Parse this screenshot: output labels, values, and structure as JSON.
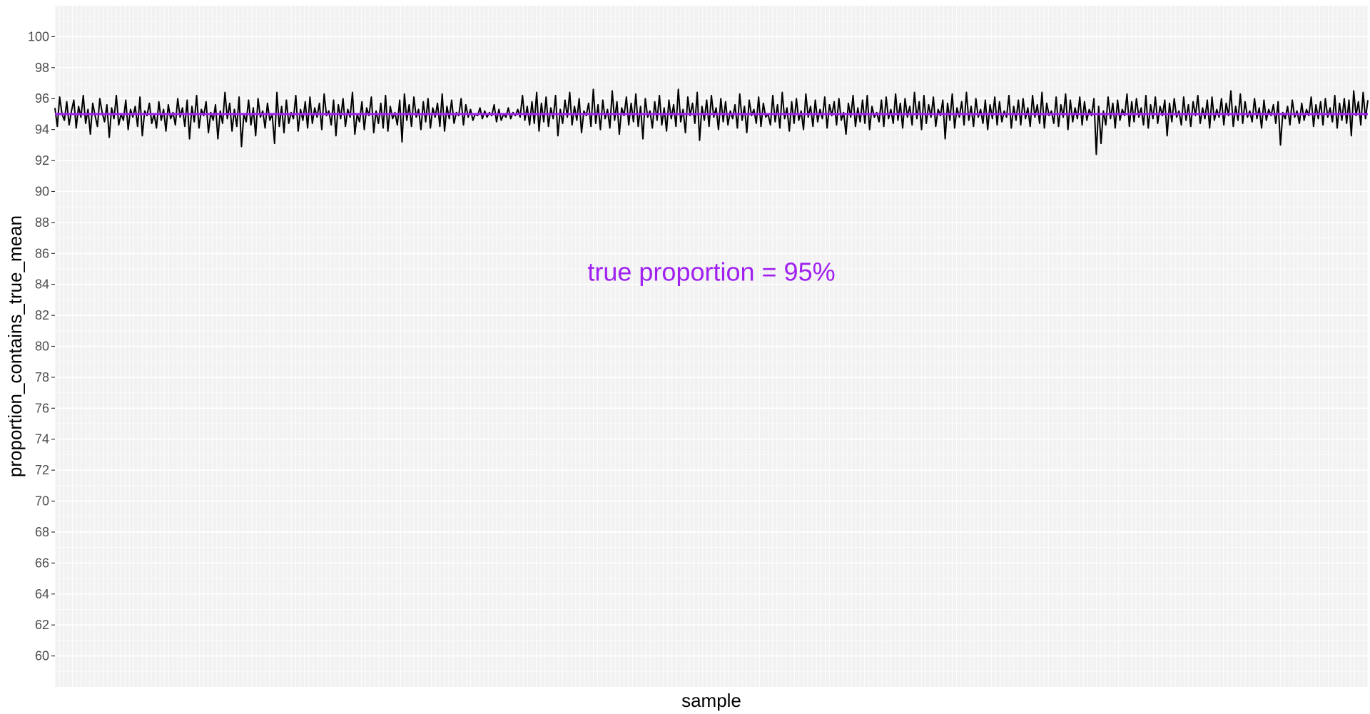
{
  "chart_data": {
    "type": "line",
    "title": "",
    "xlabel": "sample",
    "ylabel": "proportion_contains_true_mean",
    "ylim": [
      58,
      102
    ],
    "y_ticks": [
      60,
      62,
      64,
      66,
      68,
      70,
      72,
      74,
      76,
      78,
      80,
      82,
      84,
      86,
      88,
      90,
      92,
      94,
      96,
      98,
      100
    ],
    "y_tick_labels": [
      "60",
      "62",
      "64",
      "66",
      "68",
      "70",
      "72",
      "74",
      "76",
      "78",
      "80",
      "82",
      "84",
      "86",
      "88",
      "90",
      "92",
      "94",
      "96",
      "98",
      "100"
    ],
    "x_ticks_shown": false,
    "grid": true,
    "background_color": "#f2f2f2",
    "line_color": "#000000",
    "reference_line": {
      "y": 95,
      "color": "#a020f0"
    },
    "annotation": {
      "text": "true proportion = 95%",
      "x_fraction": 0.5,
      "y": 84.8,
      "color": "#a020f0"
    },
    "series": [
      {
        "values": [
          95.4,
          94.2,
          96.1,
          95.0,
          94.6,
          95.8,
          94.3,
          95.2,
          95.9,
          94.1,
          95.5,
          94.8,
          96.2,
          94.4,
          95.3,
          93.7,
          95.7,
          94.9,
          94.2,
          96.0,
          95.1,
          94.5,
          95.6,
          93.5,
          95.4,
          94.7,
          96.2,
          94.3,
          95.0,
          94.6,
          95.9,
          94.0,
          95.3,
          94.8,
          95.5,
          94.2,
          96.1,
          93.6,
          95.2,
          94.9,
          95.7,
          94.4,
          95.0,
          94.1,
          95.8,
          94.6,
          95.3,
          93.9,
          95.6,
          94.7,
          95.1,
          94.3,
          96.0,
          94.8,
          95.4,
          94.2,
          95.9,
          93.4,
          95.5,
          94.5,
          96.2,
          94.1,
          95.3,
          94.9,
          95.8,
          93.8,
          95.1,
          94.6,
          95.6,
          93.4,
          95.2,
          94.4,
          96.4,
          94.7,
          95.7,
          93.9,
          95.3,
          94.2,
          96.1,
          92.9,
          95.0,
          94.5,
          95.9,
          94.3,
          95.4,
          93.6,
          96.0,
          94.8,
          95.2,
          94.1,
          95.7,
          94.6,
          95.0,
          93.1,
          96.4,
          94.2,
          95.5,
          93.8,
          95.9,
          94.4,
          95.1,
          94.7,
          96.2,
          93.9,
          95.3,
          94.6,
          95.8,
          94.1,
          96.1,
          94.4,
          95.4,
          94.8,
          95.7,
          94.0,
          96.3,
          94.9,
          95.2,
          94.3,
          95.9,
          93.6,
          95.6,
          94.7,
          96.0,
          94.2,
          95.3,
          94.8,
          96.4,
          93.7,
          95.0,
          94.5,
          95.8,
          94.0,
          95.4,
          94.9,
          96.1,
          93.8,
          95.2,
          94.4,
          95.7,
          94.1,
          96.2,
          93.9,
          95.5,
          94.7,
          95.1,
          94.3,
          95.9,
          93.2,
          96.3,
          94.6,
          95.6,
          94.2,
          96.1,
          94.8,
          95.3,
          94.0,
          95.8,
          94.5,
          96.0,
          94.1,
          95.4,
          94.8,
          95.7,
          94.2,
          96.3,
          93.9,
          95.5,
          94.7,
          95.9,
          94.4,
          95.1,
          94.9,
          96.0,
          94.3,
          95.6,
          94.8,
          95.3,
          94.6,
          95.0,
          94.9,
          95.4,
          94.7,
          95.2,
          94.8,
          95.1,
          94.9,
          95.6,
          94.5,
          95.3,
          94.6,
          95.0,
          94.8,
          95.4,
          94.7,
          95.1,
          94.9,
          95.3,
          94.8,
          96.2,
          94.6,
          95.5,
          94.3,
          95.8,
          94.4,
          96.4,
          93.9,
          95.7,
          94.5,
          96.1,
          94.2,
          95.4,
          94.7,
          96.2,
          93.6,
          95.3,
          94.4,
          95.9,
          94.8,
          96.4,
          94.3,
          95.5,
          94.6,
          96.0,
          93.8,
          95.2,
          94.9,
          95.7,
          94.2,
          96.6,
          94.4,
          95.6,
          94.0,
          95.9,
          94.7,
          95.3,
          94.1,
          96.5,
          94.6,
          95.8,
          93.7,
          95.4,
          94.9,
          96.1,
          94.3,
          95.7,
          94.5,
          96.3,
          94.2,
          95.5,
          93.4,
          96.0,
          94.8,
          95.2,
          94.1,
          95.8,
          94.6,
          96.2,
          94.3,
          95.4,
          93.9,
          95.9,
          94.7,
          95.6,
          94.2,
          96.6,
          94.5,
          95.3,
          93.8,
          96.1,
          94.9,
          95.7,
          94.4,
          96.4,
          93.3,
          95.5,
          94.6,
          95.9,
          94.2,
          96.2,
          94.8,
          95.4,
          94.0,
          96.0,
          94.5,
          95.8,
          94.3,
          95.2,
          94.7,
          95.6,
          94.1,
          96.3,
          94.6,
          95.5,
          93.8,
          95.9,
          94.9,
          95.3,
          94.4,
          96.1,
          94.2,
          95.7,
          94.8,
          95.0,
          94.3,
          96.2,
          94.5,
          95.6,
          94.1,
          96.4,
          94.7,
          95.4,
          93.9,
          95.8,
          94.4,
          96.0,
          94.6,
          95.2,
          94.0,
          96.3,
          94.8,
          95.5,
          94.2,
          95.9,
          94.5,
          95.3,
          94.7,
          96.1,
          94.1,
          95.6,
          94.9,
          95.8,
          94.3,
          96.0,
          94.6,
          95.1,
          93.7,
          95.7,
          94.8,
          96.2,
          94.2,
          95.4,
          94.5,
          95.9,
          94.4,
          96.2,
          94.0,
          95.5,
          94.8,
          95.1,
          94.5,
          95.9,
          94.2,
          96.1,
          94.7,
          95.3,
          94.4,
          96.3,
          94.6,
          95.7,
          94.1,
          96.0,
          94.8,
          95.5,
          94.3,
          96.4,
          94.7,
          95.8,
          94.0,
          96.2,
          94.4,
          95.6,
          94.8,
          96.1,
          94.2,
          95.3,
          94.9,
          95.9,
          93.4,
          95.7,
          94.6,
          96.3,
          94.1,
          95.4,
          94.8,
          95.8,
          94.3,
          96.4,
          94.6,
          95.5,
          94.2,
          96.0,
          94.8,
          95.3,
          94.4,
          95.9,
          94.0,
          95.6,
          94.7,
          96.1,
          94.3,
          95.8,
          94.5,
          95.2,
          94.8,
          96.2,
          94.1,
          95.5,
          94.6,
          95.9,
          94.3,
          96.0,
          94.7,
          95.4,
          94.2,
          96.2,
          94.8,
          95.6,
          94.4,
          96.4,
          94.1,
          95.7,
          94.9,
          95.2,
          94.4,
          96.1,
          94.2,
          95.6,
          94.8,
          96.3,
          94.0,
          95.9,
          94.5,
          95.4,
          94.7,
          96.1,
          94.3,
          95.8,
          94.6,
          95.3,
          94.9,
          96.0,
          92.4,
          95.5,
          93.1,
          95.2,
          94.3,
          96.1,
          94.7,
          95.7,
          94.1,
          95.9,
          94.6,
          95.3,
          94.9,
          96.3,
          94.2,
          95.8,
          94.5,
          96.0,
          94.8,
          95.4,
          94.3,
          96.2,
          94.1,
          95.6,
          94.7,
          96.1,
          94.4,
          95.5,
          94.9,
          95.9,
          93.6,
          95.7,
          94.5,
          96.0,
          94.8,
          95.2,
          94.3,
          96.1,
          94.6,
          95.6,
          94.2,
          95.8,
          94.9,
          96.2,
          94.4,
          95.4,
          94.7,
          95.9,
          94.1,
          96.1,
          94.6,
          95.3,
          94.8,
          96.0,
          94.3,
          95.7,
          94.9,
          96.5,
          94.2,
          95.5,
          94.6,
          96.3,
          94.4,
          95.8,
          94.8,
          95.2,
          94.5,
          96.0,
          94.7,
          95.4,
          94.1,
          95.9,
          94.6,
          95.3,
          94.9,
          95.6,
          94.4,
          95.8,
          93.0,
          95.1,
          94.7,
          95.5,
          94.3,
          95.9,
          94.8,
          95.2,
          94.4,
          95.7,
          94.6,
          95.3,
          94.9,
          96.1,
          94.2,
          95.6,
          94.7,
          95.8,
          94.3,
          96.0,
          94.8,
          95.4,
          94.5,
          96.2,
          94.1,
          95.7,
          94.6,
          96.0,
          94.4,
          95.9,
          93.6,
          96.5,
          94.9,
          95.8,
          94.3,
          96.4,
          94.7,
          95.9
        ]
      }
    ]
  }
}
